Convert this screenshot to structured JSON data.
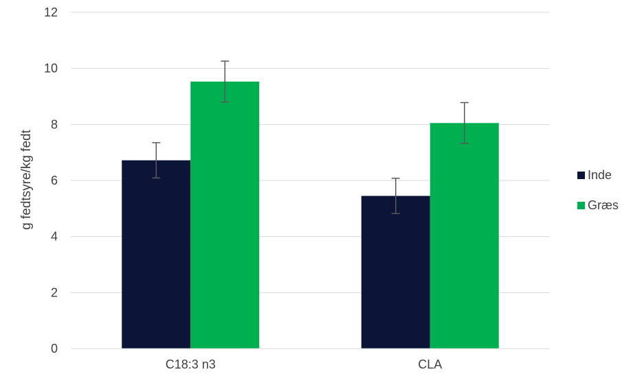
{
  "chart_data": {
    "type": "bar",
    "title": "",
    "xlabel": "",
    "ylabel": "g fedtsyre/kg fedt",
    "categories": [
      "C18:3 n3",
      "CLA"
    ],
    "series": [
      {
        "name": "Inde",
        "color": "#0c1538",
        "values": [
          6.72,
          5.45
        ],
        "errors": [
          0.63,
          0.63
        ]
      },
      {
        "name": "Græs",
        "color": "#00b050",
        "values": [
          9.53,
          8.05
        ],
        "errors": [
          0.73,
          0.73
        ]
      }
    ],
    "ylim": [
      0,
      12
    ],
    "yticks": [
      0,
      2,
      4,
      6,
      8,
      10,
      12
    ],
    "grid": true,
    "legend_position": "right"
  }
}
